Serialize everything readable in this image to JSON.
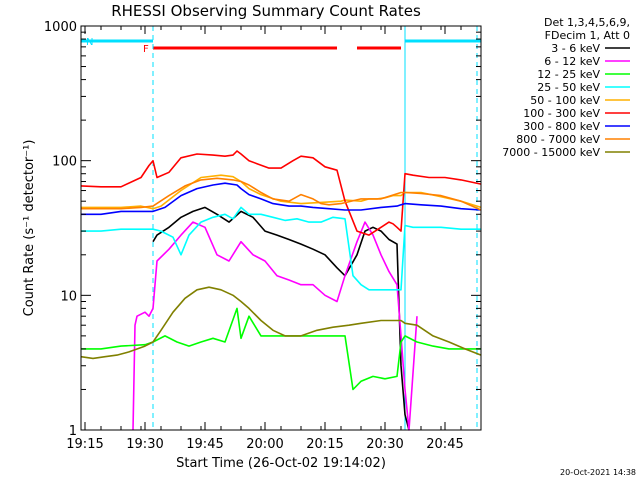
{
  "chart_data": {
    "type": "line",
    "title": "RHESSI Observing Summary Count Rates",
    "xlabel": "Start Time (26-Oct-02 19:14:02)",
    "ylabel": "Count Rate (s⁻¹ detector⁻¹)",
    "x_unit": "minutes since 19:14",
    "xlim": [
      0,
      100
    ],
    "ylim": [
      1,
      1000
    ],
    "y_scale": "log",
    "x_ticks": [
      {
        "x": 1,
        "label": "19:15"
      },
      {
        "x": 16,
        "label": "19:30"
      },
      {
        "x": 31,
        "label": "19:45"
      },
      {
        "x": 46,
        "label": "20:00"
      },
      {
        "x": 61,
        "label": "20:15"
      },
      {
        "x": 76,
        "label": "20:30"
      },
      {
        "x": 91,
        "label": "20:45"
      }
    ],
    "y_ticks": [
      {
        "y": 1,
        "label": "1"
      },
      {
        "y": 10,
        "label": "10"
      },
      {
        "y": 100,
        "label": "100"
      },
      {
        "y": 1000,
        "label": "1000"
      }
    ],
    "legend": {
      "placement": "right",
      "header": [
        "Det 1,3,4,5,6,9,",
        "FDecim 1, Att 0"
      ]
    },
    "timestamp": "20-Oct-2021 14:38",
    "flags": [
      {
        "label": "N",
        "color": "#00e0ff",
        "segments": [
          [
            0,
            18
          ],
          [
            81,
            100
          ]
        ]
      },
      {
        "label": "F",
        "color": "#ff0000",
        "segments": [
          [
            18,
            64
          ],
          [
            69,
            80
          ]
        ]
      }
    ],
    "boundaries": [
      {
        "x": 18,
        "style": "dashed",
        "color": "#00e0ff"
      },
      {
        "x": 81,
        "style": "solid",
        "color": "#00e0ff"
      },
      {
        "x": 99,
        "style": "dashed",
        "color": "#00e0ff"
      }
    ],
    "series": [
      {
        "name": "3 - 6 keV",
        "color": "#000000",
        "x": [
          18,
          19,
          22,
          25,
          28,
          31,
          34,
          37,
          40,
          43,
          46,
          49,
          52,
          55,
          58,
          61,
          64,
          66,
          69,
          71,
          73,
          75,
          77,
          79,
          80,
          81,
          82
        ],
        "y": [
          25,
          28,
          32,
          38,
          42,
          45,
          40,
          35,
          42,
          38,
          30,
          28,
          26,
          24,
          22,
          20,
          16,
          14,
          20,
          30,
          32,
          30,
          26,
          24,
          3,
          1.3,
          1
        ]
      },
      {
        "name": "6 - 12 keV",
        "color": "#ff00ff",
        "x": [
          13,
          13.5,
          14,
          16,
          17,
          18,
          19,
          22,
          25,
          28,
          31,
          34,
          37,
          40,
          43,
          46,
          49,
          52,
          55,
          58,
          61,
          64,
          66,
          69,
          71,
          73,
          75,
          77,
          79,
          80,
          81,
          82,
          84
        ],
        "y": [
          1,
          6,
          7,
          7.5,
          7,
          8,
          18,
          22,
          28,
          35,
          32,
          20,
          18,
          25,
          20,
          18,
          14,
          13,
          12,
          12,
          10,
          9,
          14,
          25,
          35,
          28,
          20,
          15,
          12,
          5,
          2,
          1,
          7
        ]
      },
      {
        "name": "12 - 25 keV",
        "color": "#00ff00",
        "x": [
          0,
          5,
          10,
          16,
          18,
          21,
          24,
          27,
          30,
          33,
          36,
          39,
          40,
          42,
          45,
          48,
          51,
          55,
          59,
          63,
          66,
          68,
          70,
          73,
          76,
          79,
          80,
          81,
          84,
          88,
          92,
          96,
          100
        ],
        "y": [
          4,
          4,
          4.2,
          4.3,
          4.5,
          5,
          4.5,
          4.2,
          4.5,
          4.8,
          4.5,
          8,
          4.8,
          7,
          5,
          5,
          5,
          5,
          5,
          5,
          5,
          2,
          2.3,
          2.5,
          2.4,
          2.5,
          4.5,
          5,
          4.5,
          4.2,
          4,
          4,
          4
        ]
      },
      {
        "name": "25 - 50 keV",
        "color": "#00ffff",
        "x": [
          0,
          5,
          10,
          15,
          18,
          20,
          23,
          25,
          27,
          30,
          33,
          36,
          38,
          40,
          42,
          45,
          48,
          51,
          54,
          57,
          60,
          63,
          66,
          68,
          70,
          72,
          74,
          76,
          78,
          80,
          81,
          83,
          86,
          90,
          95,
          100
        ],
        "y": [
          30,
          30,
          31,
          31,
          31,
          30,
          27,
          20,
          28,
          35,
          38,
          40,
          37,
          45,
          40,
          40,
          38,
          36,
          37,
          35,
          35,
          38,
          37,
          14,
          12,
          11,
          11,
          11,
          11,
          11,
          33,
          32,
          32,
          32,
          31,
          31
        ]
      },
      {
        "name": "50 - 100 keV",
        "color": "#ffb000",
        "x": [
          0,
          5,
          10,
          15,
          18,
          20,
          25,
          30,
          35,
          38,
          40,
          42,
          45,
          50,
          55,
          60,
          65,
          66,
          70,
          72,
          74,
          76,
          78,
          80,
          81,
          85,
          90,
          95,
          100
        ],
        "y": [
          45,
          45,
          45,
          46,
          44,
          46,
          60,
          75,
          78,
          76,
          70,
          62,
          56,
          50,
          48,
          49,
          50,
          51,
          50,
          52,
          52,
          53,
          55,
          55,
          58,
          58,
          54,
          50,
          45
        ]
      },
      {
        "name": "100 - 300 keV",
        "color": "#ff0000",
        "x": [
          0,
          5,
          10,
          15,
          17,
          18,
          19,
          22,
          25,
          29,
          33,
          36,
          38,
          39,
          40,
          42,
          44,
          47,
          50,
          53,
          55,
          58,
          61,
          64,
          66,
          69,
          72,
          75,
          77,
          78,
          79,
          80,
          81,
          83,
          87,
          91,
          95,
          100
        ],
        "y": [
          65,
          64,
          64,
          75,
          92,
          100,
          75,
          82,
          105,
          112,
          110,
          108,
          110,
          118,
          112,
          100,
          95,
          88,
          88,
          100,
          108,
          105,
          90,
          85,
          50,
          30,
          28,
          32,
          35,
          34,
          32,
          30,
          80,
          78,
          75,
          75,
          72,
          67
        ]
      },
      {
        "name": "300 - 800 keV",
        "color": "#0000ff",
        "x": [
          0,
          5,
          10,
          15,
          18,
          21,
          25,
          29,
          33,
          36,
          39,
          40,
          42,
          45,
          48,
          52,
          55,
          58,
          62,
          66,
          70,
          75,
          79,
          80,
          81,
          85,
          90,
          95,
          100
        ],
        "y": [
          40,
          40,
          42,
          42,
          42,
          45,
          55,
          62,
          66,
          68,
          66,
          62,
          56,
          52,
          48,
          46,
          46,
          45,
          44,
          43,
          43,
          45,
          46,
          47,
          48,
          47,
          46,
          44,
          43
        ]
      },
      {
        "name": "800 - 7000 keV",
        "color": "#ff8000",
        "x": [
          0,
          5,
          10,
          15,
          18,
          22,
          26,
          30,
          34,
          38,
          40,
          42,
          45,
          48,
          52,
          55,
          58,
          60,
          62,
          65,
          70,
          75,
          80,
          81,
          85,
          90,
          95,
          100
        ],
        "y": [
          44,
          44,
          44,
          45,
          46,
          55,
          65,
          72,
          74,
          72,
          70,
          66,
          58,
          52,
          50,
          56,
          52,
          48,
          47,
          48,
          52,
          52,
          58,
          58,
          57,
          55,
          50,
          43
        ]
      },
      {
        "name": "7000 - 15000 keV",
        "color": "#808000",
        "x": [
          0,
          3,
          6,
          9,
          12,
          16,
          18,
          20,
          23,
          26,
          29,
          32,
          35,
          38,
          40,
          42,
          45,
          48,
          51,
          55,
          59,
          63,
          67,
          70,
          75,
          80,
          81,
          84,
          88,
          92,
          96,
          100
        ],
        "y": [
          3.5,
          3.4,
          3.5,
          3.6,
          3.8,
          4.2,
          4.5,
          5.5,
          7.5,
          9.5,
          11,
          11.5,
          11,
          10,
          9,
          8,
          6.5,
          5.5,
          5,
          5,
          5.5,
          5.8,
          6,
          6.2,
          6.5,
          6.5,
          6.2,
          6,
          5,
          4.5,
          4,
          3.6
        ]
      }
    ]
  }
}
